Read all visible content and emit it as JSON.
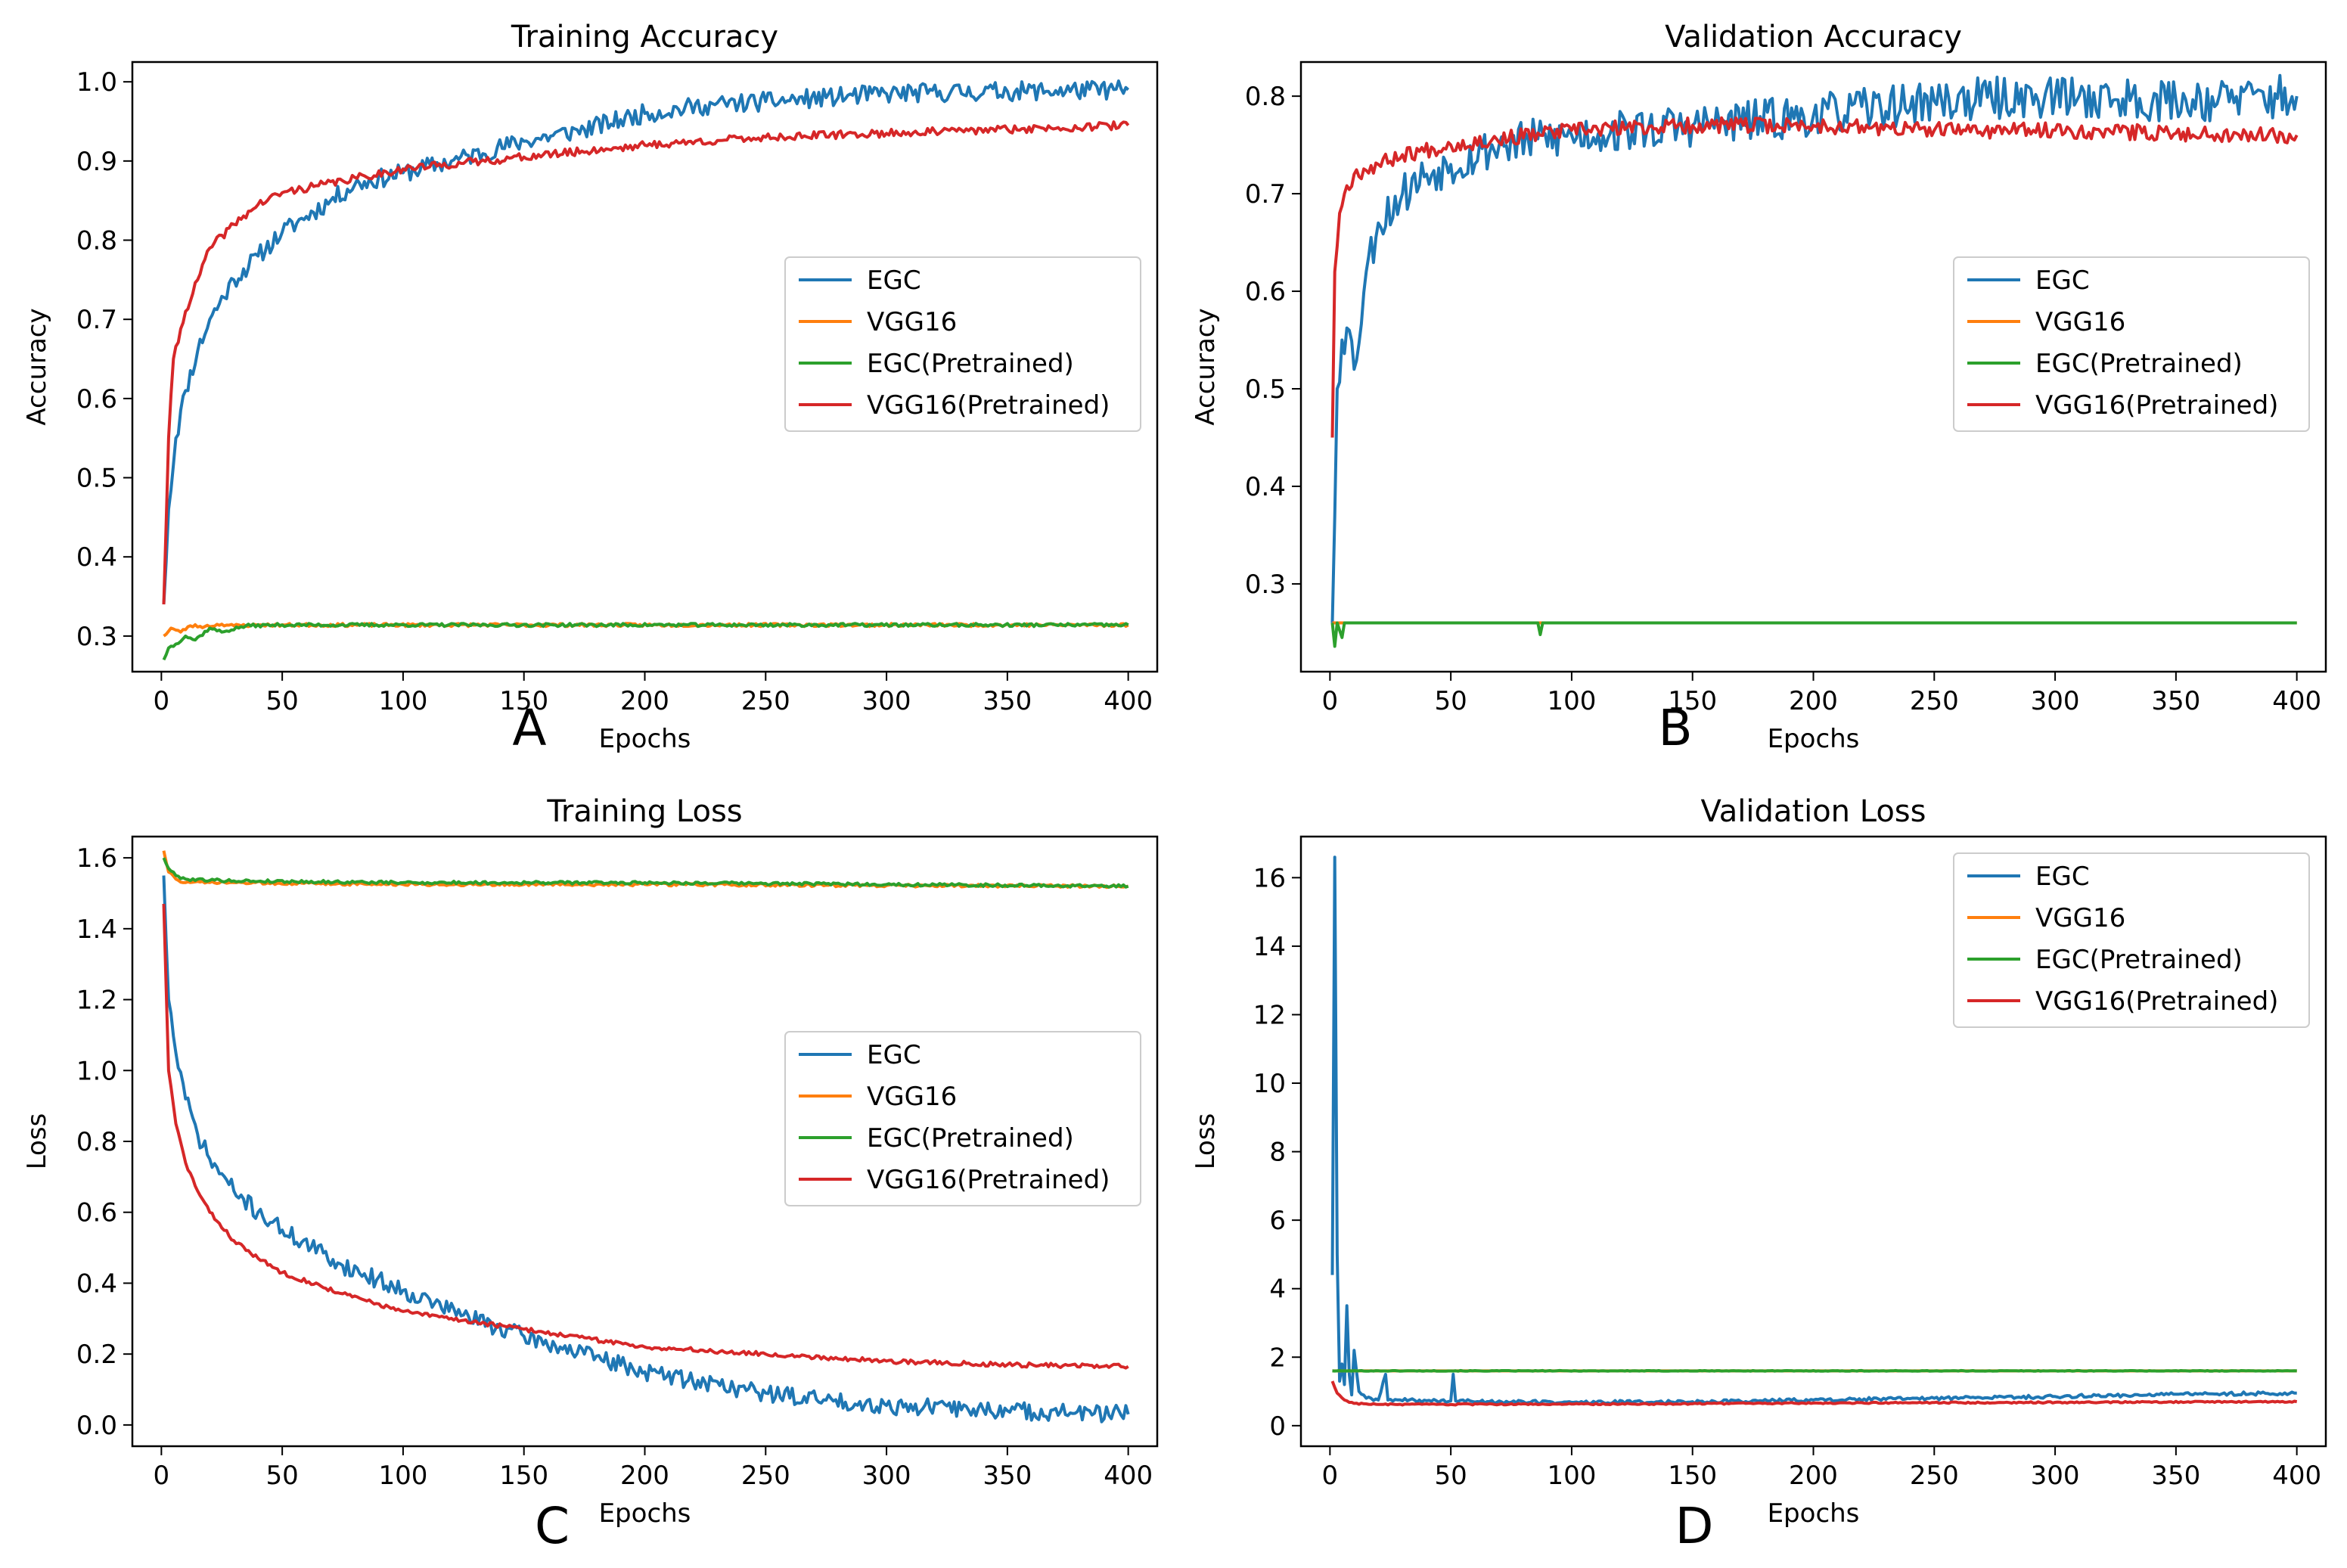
{
  "series_colors": {
    "EGC": "#1f77b4",
    "VGG16": "#ff7f0e",
    "EGC(Pretrained)": "#2ca02c",
    "VGG16(Pretrained)": "#d62728"
  },
  "chart_data": [
    {
      "type": "line",
      "panel_label": "A",
      "title": "Training Accuracy",
      "xlabel": "Epochs",
      "ylabel": "Accuracy",
      "xlim": [
        -12,
        412
      ],
      "ylim": [
        0.255,
        1.025
      ],
      "xticks": [
        0,
        50,
        100,
        150,
        200,
        250,
        300,
        350,
        400
      ],
      "yticks": [
        0.3,
        0.4,
        0.5,
        0.6,
        0.7,
        0.8,
        0.9,
        1.0
      ],
      "ytick_decimals": 1,
      "legend_position": "center-right",
      "series": [
        {
          "name": "EGC",
          "noise": 0.012,
          "seed": 11,
          "points": [
            [
              1,
              0.34
            ],
            [
              3,
              0.46
            ],
            [
              6,
              0.55
            ],
            [
              10,
              0.61
            ],
            [
              15,
              0.66
            ],
            [
              20,
              0.7
            ],
            [
              30,
              0.75
            ],
            [
              40,
              0.78
            ],
            [
              50,
              0.81
            ],
            [
              60,
              0.83
            ],
            [
              70,
              0.85
            ],
            [
              80,
              0.87
            ],
            [
              100,
              0.885
            ],
            [
              120,
              0.9
            ],
            [
              150,
              0.925
            ],
            [
              175,
              0.94
            ],
            [
              200,
              0.96
            ],
            [
              225,
              0.97
            ],
            [
              250,
              0.975
            ],
            [
              275,
              0.98
            ],
            [
              300,
              0.985
            ],
            [
              350,
              0.988
            ],
            [
              400,
              0.99
            ]
          ]
        },
        {
          "name": "VGG16",
          "noise": 0.002,
          "seed": 23,
          "points": [
            [
              1,
              0.3
            ],
            [
              4,
              0.31
            ],
            [
              8,
              0.305
            ],
            [
              12,
              0.313
            ],
            [
              18,
              0.312
            ],
            [
              25,
              0.315
            ],
            [
              30,
              0.313
            ],
            [
              40,
              0.314
            ],
            [
              400,
              0.314
            ]
          ]
        },
        {
          "name": "EGC(Pretrained)",
          "noise": 0.002,
          "seed": 37,
          "points": [
            [
              1,
              0.27
            ],
            [
              3,
              0.285
            ],
            [
              6,
              0.29
            ],
            [
              10,
              0.3
            ],
            [
              14,
              0.295
            ],
            [
              20,
              0.31
            ],
            [
              25,
              0.305
            ],
            [
              35,
              0.313
            ],
            [
              50,
              0.314
            ],
            [
              400,
              0.314
            ]
          ]
        },
        {
          "name": "VGG16(Pretrained)",
          "noise": 0.005,
          "seed": 41,
          "points": [
            [
              1,
              0.34
            ],
            [
              3,
              0.55
            ],
            [
              5,
              0.65
            ],
            [
              10,
              0.71
            ],
            [
              15,
              0.75
            ],
            [
              20,
              0.79
            ],
            [
              30,
              0.82
            ],
            [
              40,
              0.845
            ],
            [
              50,
              0.86
            ],
            [
              75,
              0.875
            ],
            [
              100,
              0.89
            ],
            [
              150,
              0.905
            ],
            [
              200,
              0.92
            ],
            [
              250,
              0.93
            ],
            [
              300,
              0.935
            ],
            [
              350,
              0.94
            ],
            [
              400,
              0.945
            ]
          ]
        }
      ]
    },
    {
      "type": "line",
      "panel_label": "B",
      "title": "Validation Accuracy",
      "xlabel": "Epochs",
      "ylabel": "Accuracy",
      "xlim": [
        -12,
        412
      ],
      "ylim": [
        0.21,
        0.835
      ],
      "xticks": [
        0,
        50,
        100,
        150,
        200,
        250,
        300,
        350,
        400
      ],
      "yticks": [
        0.3,
        0.4,
        0.5,
        0.6,
        0.7,
        0.8
      ],
      "ytick_decimals": 1,
      "legend_position": "center-right",
      "series": [
        {
          "name": "EGC",
          "noise": 0.022,
          "seed": 53,
          "points": [
            [
              1,
              0.26
            ],
            [
              3,
              0.5
            ],
            [
              5,
              0.55
            ],
            [
              8,
              0.56
            ],
            [
              10,
              0.52
            ],
            [
              15,
              0.62
            ],
            [
              20,
              0.67
            ],
            [
              30,
              0.7
            ],
            [
              40,
              0.72
            ],
            [
              50,
              0.73
            ],
            [
              70,
              0.75
            ],
            [
              100,
              0.76
            ],
            [
              150,
              0.77
            ],
            [
              200,
              0.78
            ],
            [
              250,
              0.795
            ],
            [
              300,
              0.8
            ],
            [
              350,
              0.795
            ],
            [
              400,
              0.8
            ]
          ]
        },
        {
          "name": "VGG16",
          "noise": 0.0,
          "seed": 59,
          "points": [
            [
              1,
              0.26
            ],
            [
              400,
              0.26
            ]
          ]
        },
        {
          "name": "EGC(Pretrained)",
          "noise": 0.0,
          "seed": 61,
          "points": [
            [
              1,
              0.26
            ],
            [
              2,
              0.236
            ],
            [
              3,
              0.26
            ],
            [
              5,
              0.245
            ],
            [
              6,
              0.26
            ],
            [
              86,
              0.26
            ],
            [
              87,
              0.248
            ],
            [
              88,
              0.26
            ],
            [
              400,
              0.26
            ]
          ]
        },
        {
          "name": "VGG16(Pretrained)",
          "noise": 0.008,
          "seed": 67,
          "points": [
            [
              1,
              0.45
            ],
            [
              2,
              0.62
            ],
            [
              4,
              0.68
            ],
            [
              6,
              0.7
            ],
            [
              10,
              0.72
            ],
            [
              20,
              0.73
            ],
            [
              30,
              0.74
            ],
            [
              50,
              0.75
            ],
            [
              100,
              0.765
            ],
            [
              150,
              0.77
            ],
            [
              200,
              0.77
            ],
            [
              250,
              0.765
            ],
            [
              300,
              0.765
            ],
            [
              350,
              0.762
            ],
            [
              400,
              0.76
            ]
          ]
        }
      ]
    },
    {
      "type": "line",
      "panel_label": "C",
      "title": "Training Loss",
      "xlabel": "Epochs",
      "ylabel": "Loss",
      "xlim": [
        -12,
        412
      ],
      "ylim": [
        -0.06,
        1.66
      ],
      "xticks": [
        0,
        50,
        100,
        150,
        200,
        250,
        300,
        350,
        400
      ],
      "yticks": [
        0.0,
        0.2,
        0.4,
        0.6,
        0.8,
        1.0,
        1.2,
        1.4,
        1.6
      ],
      "ytick_decimals": 1,
      "legend_position": "center-right",
      "series": [
        {
          "name": "EGC",
          "noise": 0.025,
          "seed": 71,
          "points": [
            [
              1,
              1.55
            ],
            [
              3,
              1.2
            ],
            [
              6,
              1.05
            ],
            [
              10,
              0.92
            ],
            [
              15,
              0.82
            ],
            [
              20,
              0.75
            ],
            [
              30,
              0.66
            ],
            [
              40,
              0.6
            ],
            [
              50,
              0.55
            ],
            [
              75,
              0.45
            ],
            [
              100,
              0.38
            ],
            [
              125,
              0.31
            ],
            [
              150,
              0.25
            ],
            [
              175,
              0.2
            ],
            [
              200,
              0.15
            ],
            [
              225,
              0.12
            ],
            [
              250,
              0.09
            ],
            [
              275,
              0.07
            ],
            [
              300,
              0.055
            ],
            [
              350,
              0.04
            ],
            [
              400,
              0.03
            ]
          ]
        },
        {
          "name": "VGG16",
          "noise": 0.004,
          "seed": 73,
          "points": [
            [
              1,
              1.62
            ],
            [
              3,
              1.56
            ],
            [
              6,
              1.54
            ],
            [
              10,
              1.53
            ],
            [
              30,
              1.53
            ],
            [
              100,
              1.525
            ],
            [
              200,
              1.525
            ],
            [
              300,
              1.522
            ],
            [
              400,
              1.52
            ]
          ]
        },
        {
          "name": "EGC(Pretrained)",
          "noise": 0.004,
          "seed": 79,
          "points": [
            [
              1,
              1.6
            ],
            [
              3,
              1.57
            ],
            [
              6,
              1.55
            ],
            [
              10,
              1.54
            ],
            [
              30,
              1.535
            ],
            [
              100,
              1.53
            ],
            [
              200,
              1.53
            ],
            [
              300,
              1.525
            ],
            [
              400,
              1.52
            ]
          ]
        },
        {
          "name": "VGG16(Pretrained)",
          "noise": 0.006,
          "seed": 83,
          "points": [
            [
              1,
              1.47
            ],
            [
              3,
              1.0
            ],
            [
              6,
              0.85
            ],
            [
              10,
              0.74
            ],
            [
              15,
              0.66
            ],
            [
              20,
              0.6
            ],
            [
              30,
              0.52
            ],
            [
              40,
              0.47
            ],
            [
              50,
              0.43
            ],
            [
              75,
              0.37
            ],
            [
              100,
              0.32
            ],
            [
              150,
              0.27
            ],
            [
              200,
              0.22
            ],
            [
              250,
              0.2
            ],
            [
              300,
              0.18
            ],
            [
              350,
              0.17
            ],
            [
              400,
              0.165
            ]
          ]
        }
      ]
    },
    {
      "type": "line",
      "panel_label": "D",
      "title": "Validation Loss",
      "xlabel": "Epochs",
      "ylabel": "Loss",
      "xlim": [
        -12,
        412
      ],
      "ylim": [
        -0.6,
        17.2
      ],
      "xticks": [
        0,
        50,
        100,
        150,
        200,
        250,
        300,
        350,
        400
      ],
      "yticks": [
        0,
        2,
        4,
        6,
        8,
        10,
        12,
        14,
        16
      ],
      "ytick_decimals": 0,
      "legend_position": "upper-right",
      "series": [
        {
          "name": "EGC",
          "noise": 0.05,
          "seed": 89,
          "points": [
            [
              1,
              4.4
            ],
            [
              2,
              16.6
            ],
            [
              3,
              5.0
            ],
            [
              4,
              1.3
            ],
            [
              5,
              1.8
            ],
            [
              6,
              1.2
            ],
            [
              7,
              3.5
            ],
            [
              8,
              1.5
            ],
            [
              9,
              0.9
            ],
            [
              10,
              2.2
            ],
            [
              12,
              1.0
            ],
            [
              15,
              0.8
            ],
            [
              20,
              0.75
            ],
            [
              23,
              1.5
            ],
            [
              24,
              0.75
            ],
            [
              50,
              0.72
            ],
            [
              51,
              1.5
            ],
            [
              52,
              0.72
            ],
            [
              100,
              0.68
            ],
            [
              150,
              0.7
            ],
            [
              200,
              0.75
            ],
            [
              250,
              0.8
            ],
            [
              300,
              0.85
            ],
            [
              350,
              0.92
            ],
            [
              400,
              0.95
            ]
          ]
        },
        {
          "name": "VGG16",
          "noise": 0.0,
          "seed": 97,
          "points": [
            [
              1,
              1.6
            ],
            [
              400,
              1.6
            ]
          ]
        },
        {
          "name": "EGC(Pretrained)",
          "noise": 0.01,
          "seed": 101,
          "points": [
            [
              1,
              1.6
            ],
            [
              400,
              1.6
            ]
          ]
        },
        {
          "name": "VGG16(Pretrained)",
          "noise": 0.02,
          "seed": 103,
          "points": [
            [
              1,
              1.3
            ],
            [
              3,
              0.95
            ],
            [
              6,
              0.75
            ],
            [
              10,
              0.65
            ],
            [
              20,
              0.62
            ],
            [
              50,
              0.62
            ],
            [
              100,
              0.63
            ],
            [
              150,
              0.64
            ],
            [
              200,
              0.66
            ],
            [
              300,
              0.68
            ],
            [
              400,
              0.7
            ]
          ]
        }
      ]
    }
  ]
}
